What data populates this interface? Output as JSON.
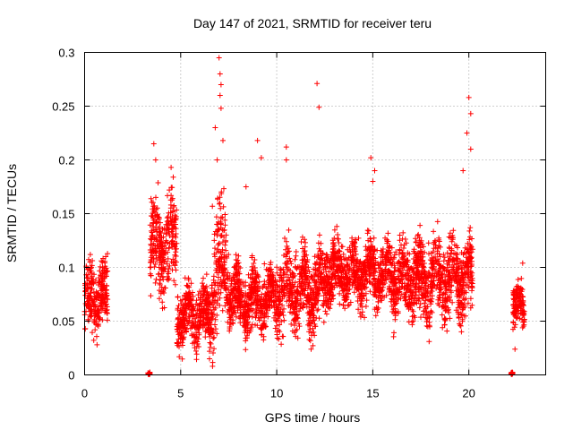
{
  "chart_data": {
    "type": "scatter",
    "title": "Day 147 of 2021, SRMTID for receiver teru",
    "xlabel": "GPS time / hours",
    "ylabel": "SRMTID / TECUs",
    "xlim": [
      0,
      24
    ],
    "ylim": [
      0,
      0.3
    ],
    "xticks": [
      0,
      5,
      10,
      15,
      20
    ],
    "xtick_labels": [
      "0",
      "5",
      "10",
      "15",
      "20"
    ],
    "yticks": [
      0,
      0.05,
      0.1,
      0.15,
      0.2,
      0.25,
      0.3
    ],
    "ytick_labels": [
      "0",
      "0.05",
      "0.1",
      "0.15",
      "0.2",
      "0.25",
      "0.3"
    ],
    "grid": true,
    "marker": "+",
    "color": "#ff0000",
    "series": [
      {
        "name": "SRMTID",
        "segments": [
          {
            "start": 0.0,
            "end": 1.2,
            "mean": 0.07,
            "spread": 0.02,
            "peaks": [
              [
                0.1,
                0.1
              ],
              [
                0.3,
                0.112
              ],
              [
                1.1,
                0.11
              ]
            ]
          },
          {
            "start": 3.3,
            "end": 3.4,
            "mean": 0.001,
            "spread": 0.001,
            "peaks": []
          },
          {
            "start": 3.4,
            "end": 4.8,
            "mean": 0.12,
            "spread": 0.03,
            "peaks": [
              [
                3.6,
                0.215
              ],
              [
                3.7,
                0.2
              ],
              [
                4.5,
                0.193
              ]
            ]
          },
          {
            "start": 4.8,
            "end": 6.6,
            "mean": 0.055,
            "spread": 0.018,
            "peaks": [
              [
                6.5,
                0.015
              ],
              [
                5.4,
                0.09
              ]
            ]
          },
          {
            "start": 6.6,
            "end": 7.5,
            "mean": 0.1,
            "spread": 0.04,
            "peaks": [
              [
                7.0,
                0.295
              ],
              [
                7.05,
                0.28
              ],
              [
                7.1,
                0.27
              ],
              [
                7.05,
                0.26
              ],
              [
                7.1,
                0.248
              ],
              [
                6.8,
                0.23
              ],
              [
                7.2,
                0.218
              ],
              [
                6.9,
                0.2
              ]
            ]
          },
          {
            "start": 7.5,
            "end": 10.0,
            "mean": 0.07,
            "spread": 0.02,
            "peaks": [
              [
                9.0,
                0.218
              ],
              [
                9.2,
                0.202
              ],
              [
                8.4,
                0.175
              ]
            ]
          },
          {
            "start": 10.0,
            "end": 12.5,
            "mean": 0.08,
            "spread": 0.025,
            "peaks": [
              [
                12.1,
                0.271
              ],
              [
                12.2,
                0.249
              ],
              [
                10.5,
                0.212
              ],
              [
                10.5,
                0.2
              ]
            ]
          },
          {
            "start": 12.5,
            "end": 16.0,
            "mean": 0.095,
            "spread": 0.02,
            "peaks": [
              [
                14.9,
                0.202
              ],
              [
                15.1,
                0.19
              ],
              [
                15.0,
                0.18
              ]
            ]
          },
          {
            "start": 16.0,
            "end": 20.2,
            "mean": 0.09,
            "spread": 0.025,
            "peaks": [
              [
                20.0,
                0.258
              ],
              [
                20.1,
                0.243
              ],
              [
                19.9,
                0.225
              ],
              [
                20.1,
                0.21
              ],
              [
                19.7,
                0.19
              ]
            ]
          },
          {
            "start": 22.2,
            "end": 22.3,
            "mean": 0.001,
            "spread": 0.001,
            "peaks": []
          },
          {
            "start": 22.3,
            "end": 22.9,
            "mean": 0.063,
            "spread": 0.015,
            "peaks": [
              [
                22.8,
                0.104
              ],
              [
                22.4,
                0.024
              ]
            ]
          }
        ]
      }
    ]
  }
}
